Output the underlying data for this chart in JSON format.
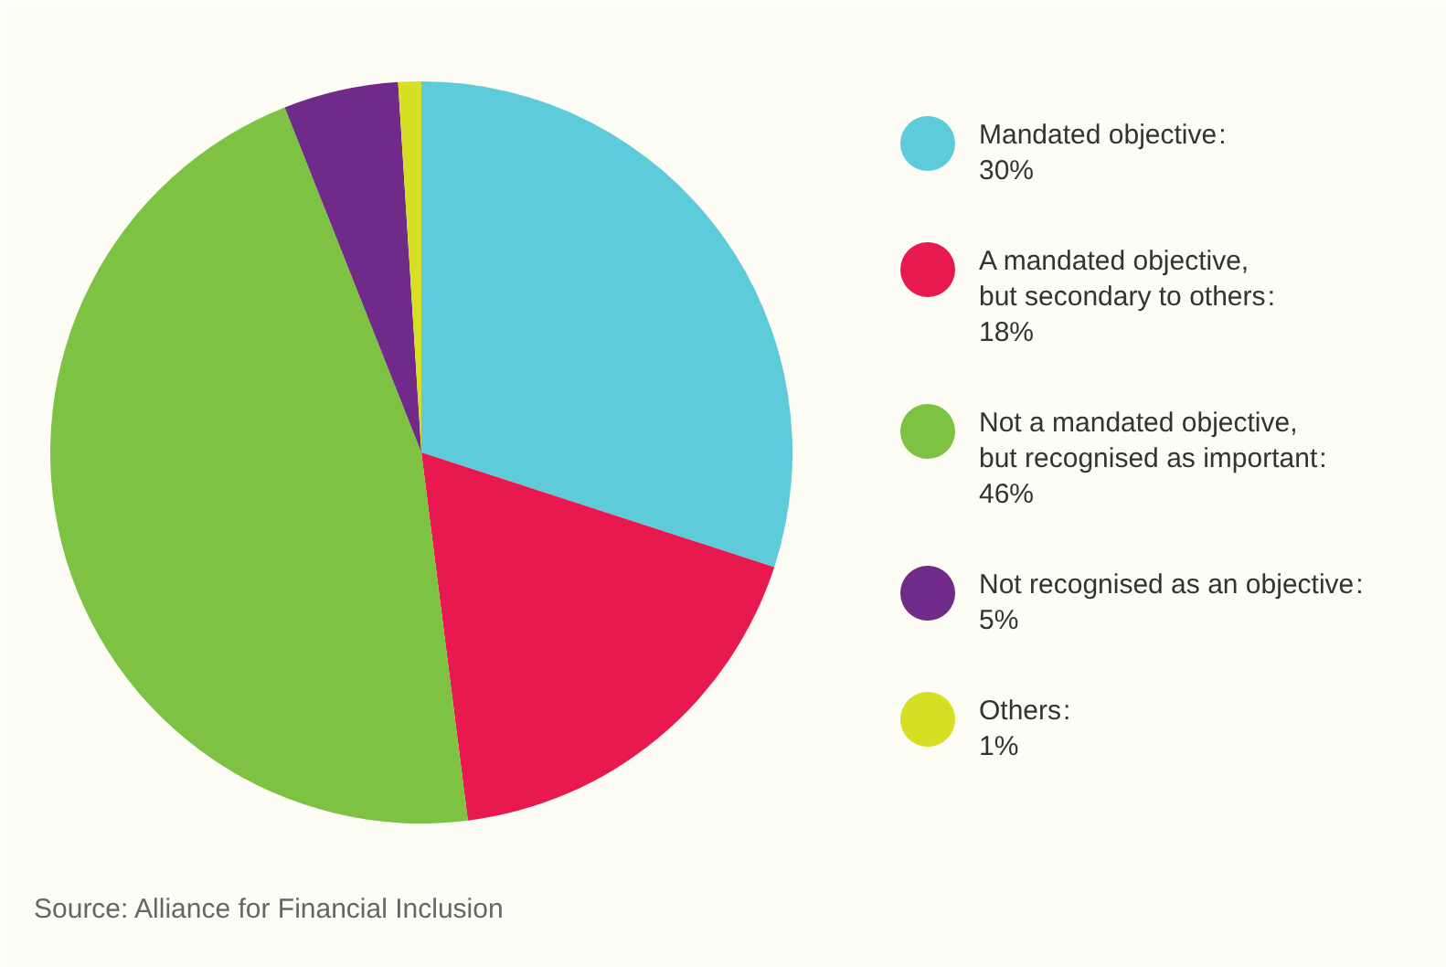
{
  "chart_data": {
    "type": "pie",
    "categories": [
      "Mandated objective",
      "A mandated objective,\nbut secondary to others",
      "Not a mandated objective,\nbut recognised as important",
      "Not recognised as an objective",
      "Others"
    ],
    "values": [
      30,
      18,
      46,
      5,
      1
    ],
    "value_labels": [
      ":\n30%",
      ":\n18%",
      ":\n46%",
      ":\n5%",
      ":\n1%"
    ],
    "colors": [
      "#5ecbdb",
      "#e8194f",
      "#7dc242",
      "#6f2a8a",
      "#d6df23"
    ],
    "legend": "right",
    "annotations": [
      "Source: Alliance for Financial Inclusion"
    ]
  }
}
